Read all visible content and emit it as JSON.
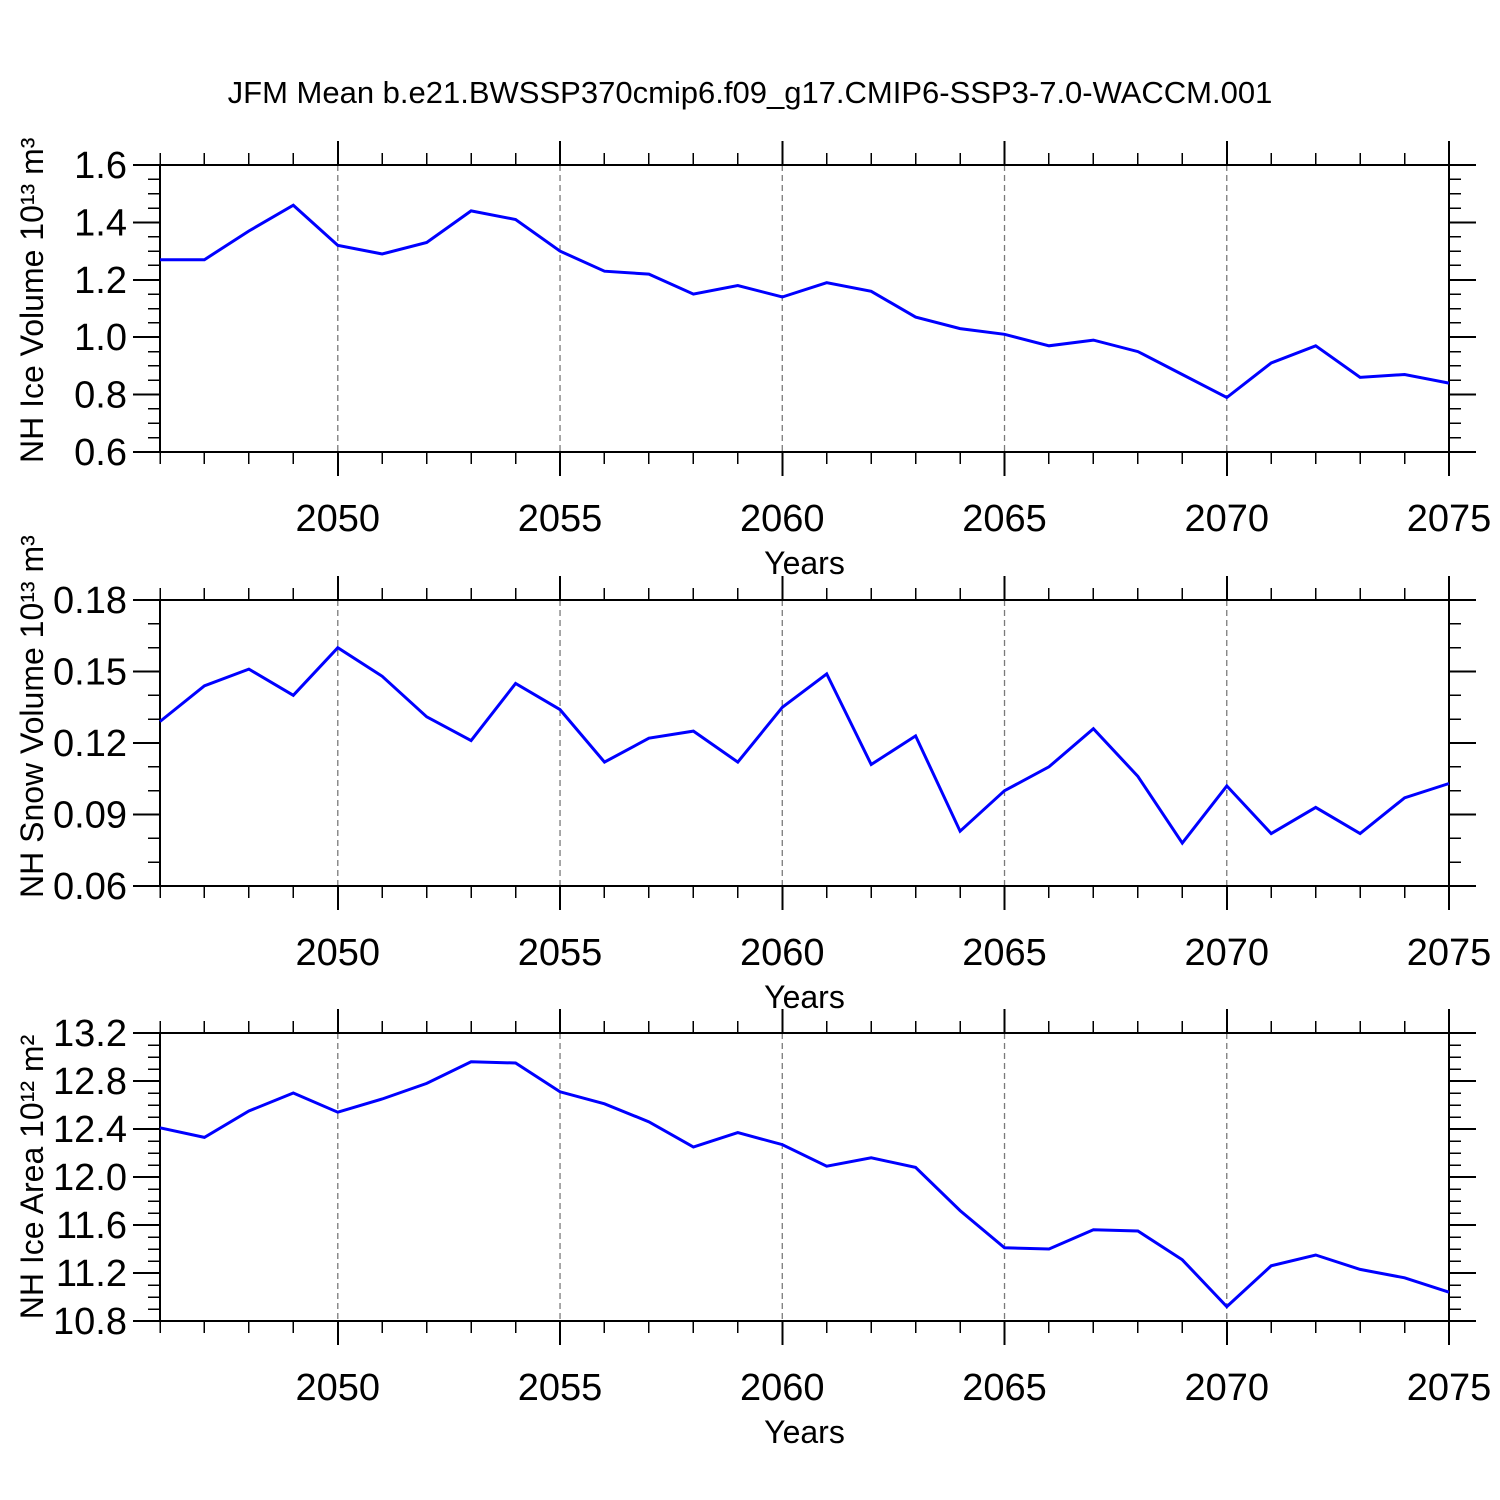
{
  "figure": {
    "title": "JFM Mean b.e21.BWSSP370cmip6.f09_g17.CMIP6-SSP3-7.0-WACCM.001"
  },
  "colors": {
    "line": "#0000ff",
    "grid": "#7a7a7a",
    "axis": "#000000",
    "background": "#ffffff"
  },
  "chart_data": [
    {
      "type": "line",
      "name": "nh-ice-volume",
      "ylabel": "NH Ice Volume 10¹³ m³",
      "xlabel": "Years",
      "xlim": [
        2046,
        2075
      ],
      "ylim": [
        0.6,
        1.6
      ],
      "xticks": [
        2050,
        2055,
        2060,
        2065,
        2070,
        2075
      ],
      "grid_x": [
        2050,
        2055,
        2060,
        2065,
        2070
      ],
      "yticks": [
        0.6,
        0.8,
        1.0,
        1.2,
        1.4,
        1.6
      ],
      "ytick_labels": [
        "0.6",
        "0.8",
        "1.0",
        "1.2",
        "1.4",
        "1.6"
      ],
      "yminor_step": 0.05,
      "x": [
        2046,
        2047,
        2048,
        2049,
        2050,
        2051,
        2052,
        2053,
        2054,
        2055,
        2056,
        2057,
        2058,
        2059,
        2060,
        2061,
        2062,
        2063,
        2064,
        2065,
        2066,
        2067,
        2068,
        2069,
        2070,
        2071,
        2072,
        2073,
        2074,
        2075
      ],
      "values": [
        1.27,
        1.27,
        1.37,
        1.46,
        1.32,
        1.29,
        1.33,
        1.44,
        1.41,
        1.3,
        1.23,
        1.22,
        1.15,
        1.18,
        1.14,
        1.19,
        1.16,
        1.07,
        1.03,
        1.01,
        0.97,
        0.99,
        0.95,
        0.87,
        0.79,
        0.91,
        0.97,
        0.86,
        0.87,
        0.84
      ]
    },
    {
      "type": "line",
      "name": "nh-snow-volume",
      "ylabel": "NH Snow Volume 10¹³ m³",
      "xlabel": "Years",
      "xlim": [
        2046,
        2075
      ],
      "ylim": [
        0.06,
        0.18
      ],
      "xticks": [
        2050,
        2055,
        2060,
        2065,
        2070,
        2075
      ],
      "grid_x": [
        2050,
        2055,
        2060,
        2065,
        2070
      ],
      "yticks": [
        0.06,
        0.09,
        0.12,
        0.15,
        0.18
      ],
      "ytick_labels": [
        "0.06",
        "0.09",
        "0.12",
        "0.15",
        "0.18"
      ],
      "yminor_step": 0.01,
      "x": [
        2046,
        2047,
        2048,
        2049,
        2050,
        2051,
        2052,
        2053,
        2054,
        2055,
        2056,
        2057,
        2058,
        2059,
        2060,
        2061,
        2062,
        2063,
        2064,
        2065,
        2066,
        2067,
        2068,
        2069,
        2070,
        2071,
        2072,
        2073,
        2074,
        2075
      ],
      "values": [
        0.129,
        0.144,
        0.151,
        0.14,
        0.16,
        0.148,
        0.131,
        0.121,
        0.145,
        0.134,
        0.112,
        0.122,
        0.125,
        0.112,
        0.135,
        0.149,
        0.111,
        0.123,
        0.083,
        0.1,
        0.11,
        0.126,
        0.106,
        0.078,
        0.102,
        0.082,
        0.093,
        0.082,
        0.097,
        0.103
      ]
    },
    {
      "type": "line",
      "name": "nh-ice-area",
      "ylabel": "NH Ice Area 10¹² m²",
      "xlabel": "Years",
      "xlim": [
        2046,
        2075
      ],
      "ylim": [
        10.8,
        13.2
      ],
      "xticks": [
        2050,
        2055,
        2060,
        2065,
        2070,
        2075
      ],
      "grid_x": [
        2050,
        2055,
        2060,
        2065,
        2070
      ],
      "yticks": [
        10.8,
        11.2,
        11.6,
        12.0,
        12.4,
        12.8,
        13.2
      ],
      "ytick_labels": [
        "10.8",
        "11.2",
        "11.6",
        "12.0",
        "12.4",
        "12.8",
        "13.2"
      ],
      "yminor_step": 0.1,
      "x": [
        2046,
        2047,
        2048,
        2049,
        2050,
        2051,
        2052,
        2053,
        2054,
        2055,
        2056,
        2057,
        2058,
        2059,
        2060,
        2061,
        2062,
        2063,
        2064,
        2065,
        2066,
        2067,
        2068,
        2069,
        2070,
        2071,
        2072,
        2073,
        2074,
        2075
      ],
      "values": [
        12.41,
        12.33,
        12.55,
        12.7,
        12.54,
        12.65,
        12.78,
        12.96,
        12.95,
        12.71,
        12.61,
        12.46,
        12.25,
        12.37,
        12.27,
        12.09,
        12.16,
        12.08,
        11.72,
        11.41,
        11.4,
        11.56,
        11.55,
        11.31,
        10.92,
        11.26,
        11.35,
        11.23,
        11.16,
        11.04
      ]
    }
  ]
}
